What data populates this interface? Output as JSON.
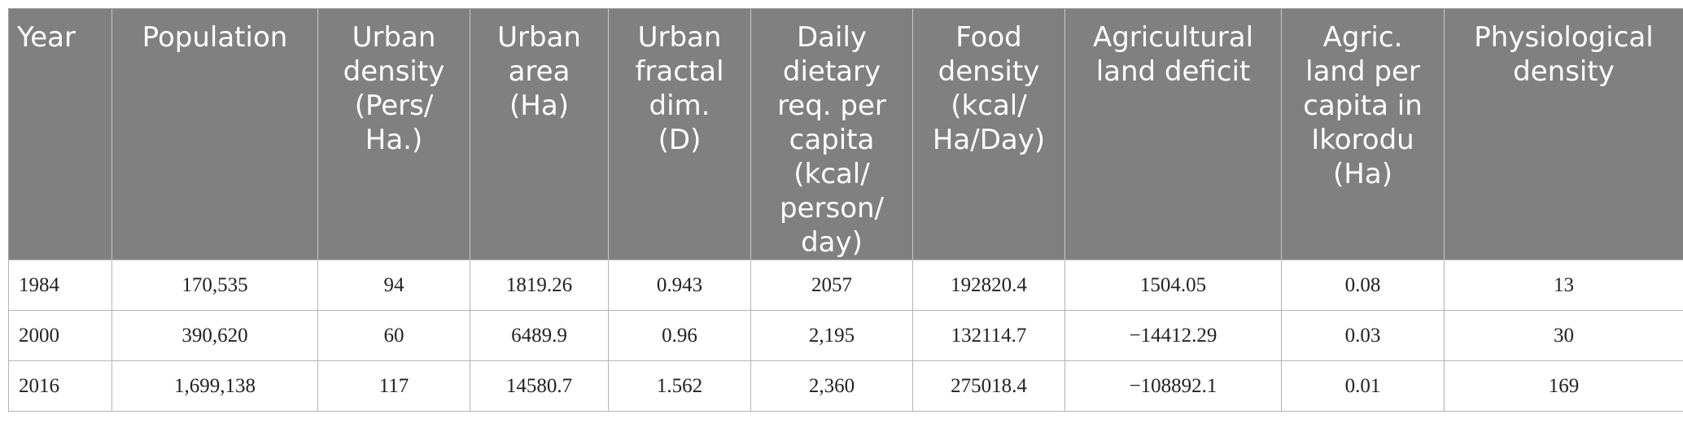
{
  "table": {
    "headers": [
      [
        "Year"
      ],
      [
        "Population"
      ],
      [
        "Urban",
        "density",
        "(Pers/",
        "Ha.)"
      ],
      [
        "Urban",
        "area",
        "(Ha)"
      ],
      [
        "Urban",
        "fractal",
        "dim.",
        "(D)"
      ],
      [
        "Daily",
        "dietary",
        "req. per",
        "capita",
        "(kcal/",
        "person/",
        "day)"
      ],
      [
        "Food",
        "density",
        "(kcal/",
        "Ha/Day)"
      ],
      [
        "Agricultural",
        "land deficit"
      ],
      [
        "Agric.",
        "land per",
        "capita in",
        "Ikorodu",
        "(Ha)"
      ],
      [
        "Physiological",
        "density"
      ]
    ],
    "rows": [
      [
        "1984",
        "170,535",
        "94",
        "1819.26",
        "0.943",
        "2057",
        "192820.4",
        "1504.05",
        "0.08",
        "13"
      ],
      [
        "2000",
        "390,620",
        "60",
        "6489.9",
        "0.96",
        "2,195",
        "132114.7",
        "−14412.29",
        "0.03",
        "30"
      ],
      [
        "2016",
        "1,699,138",
        "117",
        "14580.7",
        "1.562",
        "2,360",
        "275018.4",
        "−108892.1",
        "0.01",
        "169"
      ]
    ]
  }
}
